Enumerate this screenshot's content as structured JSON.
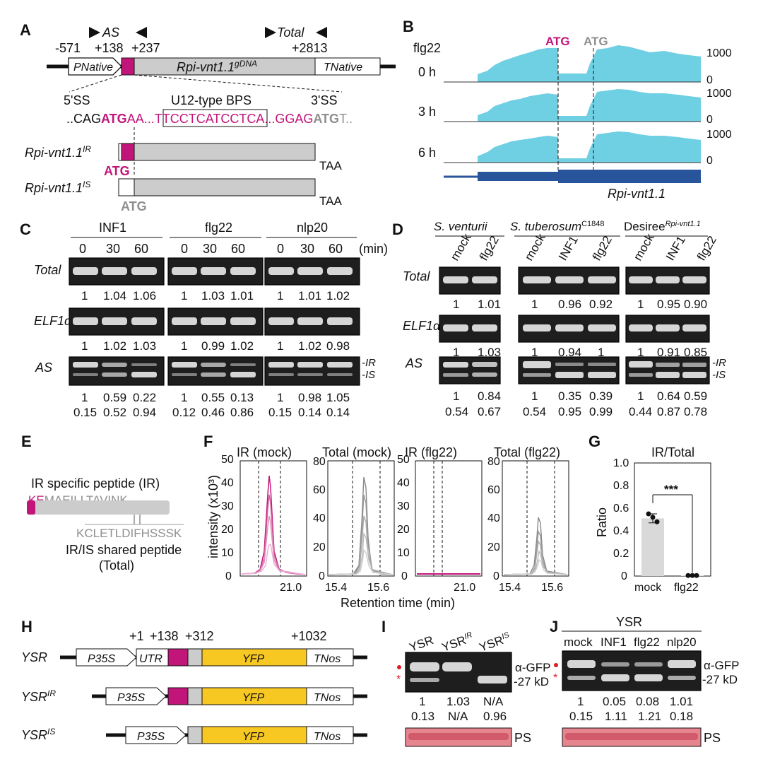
{
  "colors": {
    "magenta": "#c2157a",
    "gene_grey": "#cccccc",
    "coverage": "#6fcfe3",
    "gene_blue": "#27549b",
    "yfp": "#f8c822",
    "ps": "#e7858f",
    "grey_text": "#8f8f8f"
  },
  "panelA": {
    "label": "A",
    "primer_as": "AS",
    "primer_total": "Total",
    "pos_m571": "-571",
    "pos_138": "+138",
    "pos_237": "+237",
    "pos_2813": "+2813",
    "pnative": "PNative",
    "gene_base": "Rpi-vnt1.1",
    "gene_sup": "gDNA",
    "tnative": "TNative",
    "ss5": "5'SS",
    "bps": "U12-type BPS",
    "ss3": "3'SS",
    "seq": {
      "s1": "..CAG",
      "s2": "ATG",
      "s3": "AA...T",
      "s4": "TCCTCATCCTC",
      "s5": "A...GGAG",
      "s6": "ATG",
      "s7": "T.."
    },
    "ir_base": "Rpi-vnt1.1",
    "ir_sup": "IR",
    "is_base": "Rpi-vnt1.1",
    "is_sup": "IS",
    "atg": "ATG",
    "taa": "TAA"
  },
  "panelB": {
    "label": "B",
    "treatment": "flg22",
    "atg_ir": "ATG",
    "atg_is": "ATG",
    "tracks": [
      {
        "time": "0 h",
        "ymax": "1000",
        "ymin": "0"
      },
      {
        "time": "3 h",
        "ymax": "1000",
        "ymin": "0"
      },
      {
        "time": "6 h",
        "ymax": "1000",
        "ymin": "0"
      }
    ],
    "gene": "Rpi-vnt1.1"
  },
  "panelC": {
    "label": "C",
    "unit": "(min)",
    "groups": [
      {
        "name": "INF1",
        "times": [
          "0",
          "30",
          "60"
        ]
      },
      {
        "name": "flg22",
        "times": [
          "0",
          "30",
          "60"
        ]
      },
      {
        "name": "nlp20",
        "times": [
          "0",
          "30",
          "60"
        ]
      }
    ],
    "rows": {
      "total": "Total",
      "elf": "ELF1α",
      "as": "AS"
    },
    "total_vals": [
      [
        "1",
        "1.04",
        "1.06"
      ],
      [
        "1",
        "1.03",
        "1.01"
      ],
      [
        "1",
        "1.01",
        "1.02"
      ]
    ],
    "elf_vals": [
      [
        "1",
        "1.02",
        "1.03"
      ],
      [
        "1",
        "0.99",
        "1.02"
      ],
      [
        "1",
        "1.02",
        "0.98"
      ]
    ],
    "as_ir_vals": [
      [
        "1",
        "0.59",
        "0.22"
      ],
      [
        "1",
        "0.55",
        "0.13"
      ],
      [
        "1",
        "0.98",
        "1.05"
      ]
    ],
    "as_is_vals": [
      [
        "0.15",
        "0.52",
        "0.94"
      ],
      [
        "0.12",
        "0.46",
        "0.86"
      ],
      [
        "0.15",
        "0.14",
        "0.14"
      ]
    ],
    "ir_tag": "-IR",
    "is_tag": "-IS"
  },
  "panelD": {
    "label": "D",
    "species": [
      {
        "name": "S. venturii",
        "sup": ""
      },
      {
        "name": "S. tuberosum",
        "sup": "C1848"
      },
      {
        "name": "Desiree",
        "sup": "Rpi-vnt1.1"
      }
    ],
    "lanes": [
      [
        "mock",
        "flg22"
      ],
      [
        "mock",
        "INF1",
        "flg22"
      ],
      [
        "mock",
        "INF1",
        "flg22"
      ]
    ],
    "rows": {
      "total": "Total",
      "elf": "ELF1α",
      "as": "AS"
    },
    "total_vals": [
      [
        "1",
        "1.01"
      ],
      [
        "1",
        "0.96",
        "0.92"
      ],
      [
        "1",
        "0.95",
        "0.90"
      ]
    ],
    "elf_vals": [
      [
        "1",
        "1.03"
      ],
      [
        "1",
        "0.94",
        "1"
      ],
      [
        "1",
        "0.91",
        "0.85"
      ]
    ],
    "as_ir_vals": [
      [
        "1",
        "0.84"
      ],
      [
        "1",
        "0.35",
        "0.39"
      ],
      [
        "1",
        "0.64",
        "0.59"
      ]
    ],
    "as_is_vals": [
      [
        "0.54",
        "0.67"
      ],
      [
        "0.54",
        "0.95",
        "0.99"
      ],
      [
        "0.44",
        "0.87",
        "0.78"
      ]
    ],
    "ir_tag": "-IR",
    "is_tag": "-IS"
  },
  "panelE": {
    "label": "E",
    "ir_title": "IR specific peptide (IR)",
    "ir_pep_a": "KE",
    "ir_pep_b": "MAEILLTAVINK",
    "shared_pep": "KCLETLDIFHSSSK",
    "shared_title": "IR/IS shared peptide",
    "shared_sub": "(Total)"
  },
  "panelF": {
    "label": "F",
    "titles": [
      "IR (mock)",
      "Total (mock)",
      "IR (flg22)",
      "Total (flg22)"
    ],
    "ylabel": "intensity (x10³)",
    "xlabel": "Retention time (min)",
    "yticks_ir": [
      "0",
      "10",
      "20",
      "30",
      "40",
      "50"
    ],
    "yticks_total": [
      "0",
      "20",
      "40",
      "60",
      "80"
    ],
    "xtick_ir": "21.0",
    "xticks_total": [
      "15.4",
      "15.6"
    ]
  },
  "panelG": {
    "label": "G",
    "title": "IR/Total",
    "ylabel": "Ratio",
    "yticks": [
      "0",
      "0.2",
      "0.4",
      "0.6",
      "0.8",
      "1.0"
    ],
    "categories": [
      "mock",
      "flg22"
    ],
    "sig": "***"
  },
  "chart_data": [
    {
      "type": "bar",
      "title": "IR/Total",
      "xlabel": "",
      "ylabel": "Ratio",
      "ylim": [
        0,
        1.0
      ],
      "categories": [
        "mock",
        "flg22"
      ],
      "values": [
        0.51,
        0.005
      ],
      "points": [
        [
          0.55,
          0.52,
          0.48
        ],
        [
          0.005,
          0.005,
          0.005
        ]
      ],
      "error": [
        0.04,
        0.002
      ],
      "significance": "***"
    }
  ],
  "panelH": {
    "label": "H",
    "pos_1": "+1",
    "pos_138": "+138",
    "pos_312": "+312",
    "pos_1032": "+1032",
    "constructs": [
      {
        "base": "YSR",
        "sup": ""
      },
      {
        "base": "YSR",
        "sup": "IR"
      },
      {
        "base": "YSR",
        "sup": "IS"
      }
    ],
    "p35s": "P35S",
    "utr": "UTR",
    "yfp": "YFP",
    "tnos": "TNos"
  },
  "panelI": {
    "label": "I",
    "lanes": [
      {
        "base": "YSR",
        "sup": ""
      },
      {
        "base": "YSR",
        "sup": "IR"
      },
      {
        "base": "YSR",
        "sup": "IS"
      }
    ],
    "agfp": "α-GFP",
    "kd": "-27 kD",
    "row1": [
      "1",
      "1.03",
      "N/A"
    ],
    "row2": [
      "0.13",
      "N/A",
      "0.96"
    ],
    "ps": "PS"
  },
  "panelJ": {
    "label": "J",
    "header": "YSR",
    "lanes": [
      "mock",
      "INF1",
      "flg22",
      "nlp20"
    ],
    "agfp": "α-GFP",
    "kd": "-27 kD",
    "row1": [
      "1",
      "0.05",
      "0.08",
      "1.01"
    ],
    "row2": [
      "0.15",
      "1.11",
      "1.21",
      "0.18"
    ],
    "ps": "PS"
  }
}
